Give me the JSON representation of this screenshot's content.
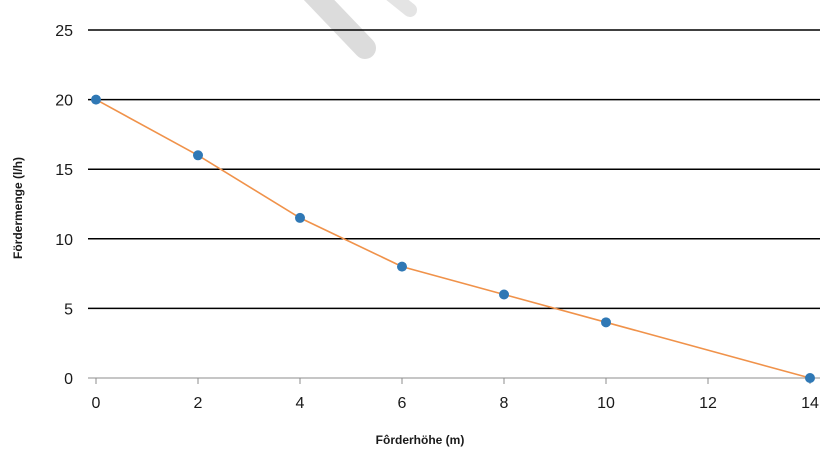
{
  "chart_data": {
    "type": "line",
    "xlabel": "Fôrderhöhe (m)",
    "ylabel": "Fördermenge (l/h)",
    "xlim": [
      0,
      14
    ],
    "ylim": [
      0,
      25
    ],
    "x_ticks": [
      "0",
      "2",
      "4",
      "6",
      "8",
      "10",
      "12",
      "14"
    ],
    "y_ticks": [
      "0",
      "5",
      "10",
      "15",
      "20",
      "25"
    ],
    "grid": "horizontal",
    "series": [
      {
        "x": [
          0,
          2,
          4,
          6,
          8,
          10,
          14
        ],
        "y": [
          20,
          16,
          11.5,
          8,
          6,
          4,
          0
        ]
      }
    ],
    "line_color": "#f0924a",
    "marker_color": "#2f78b5",
    "grid_color": "#000000",
    "watermark_color": "#d9d9d9"
  }
}
